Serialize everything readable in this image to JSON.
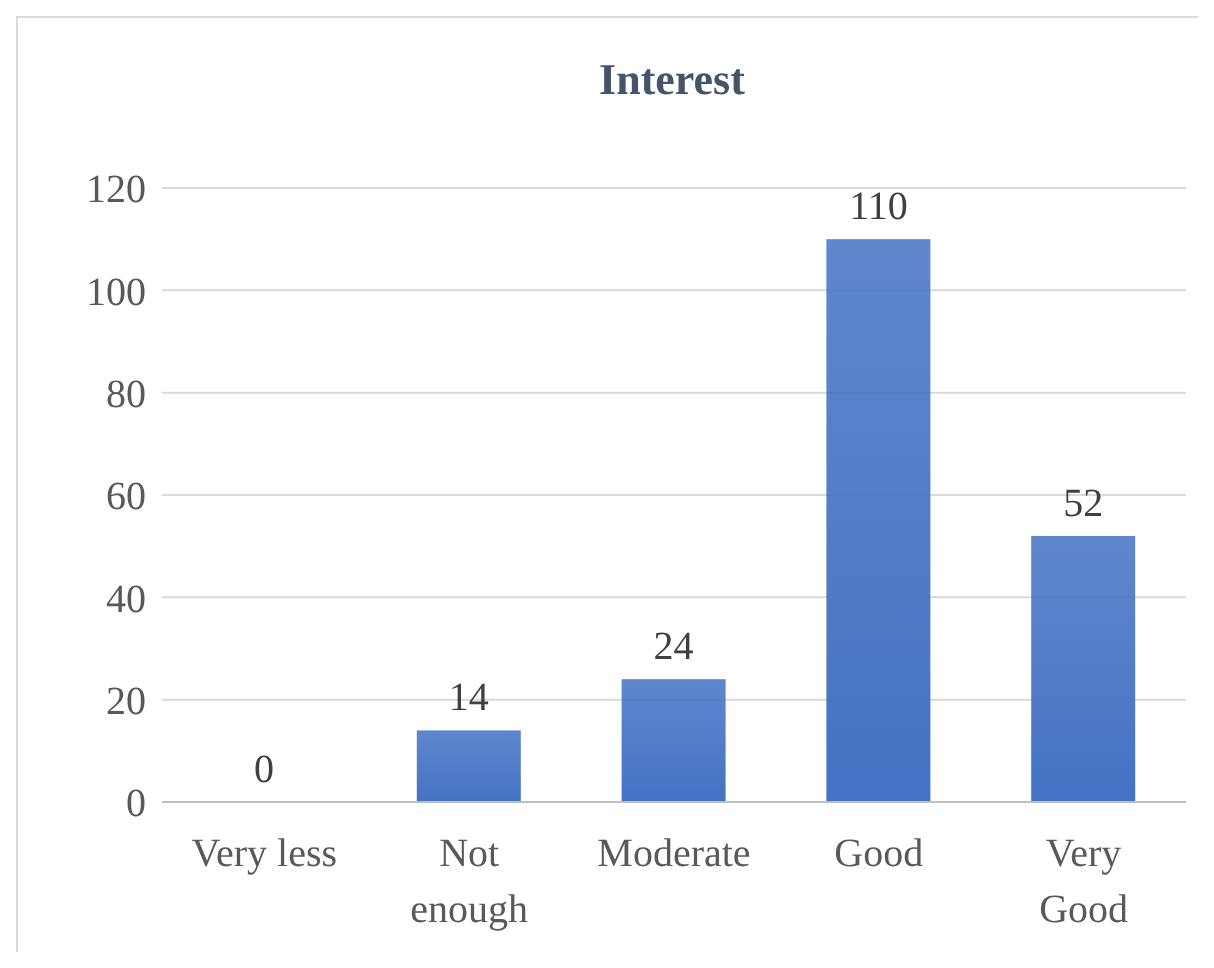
{
  "chart_data": {
    "type": "bar",
    "title": "Interest",
    "categories": [
      "Very less",
      "Not enough",
      "Moderate",
      "Good",
      "Very Good"
    ],
    "values": [
      0,
      14,
      24,
      110,
      52
    ],
    "color": "#4472c4",
    "ylim": [
      0,
      120
    ],
    "yticks": [
      0,
      20,
      40,
      60,
      80,
      100,
      120
    ],
    "grid": "y",
    "data_labels": true
  }
}
